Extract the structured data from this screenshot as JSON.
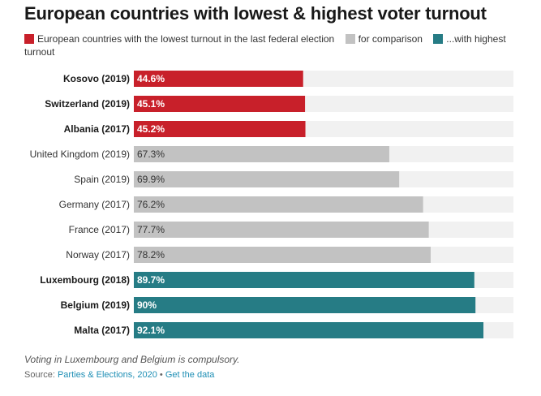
{
  "title": "European countries with lowest & highest voter turnout",
  "legend": [
    {
      "label": "European countries with the lowest turnout in the last federal election",
      "color": "#c8202a"
    },
    {
      "label": "for comparison",
      "color": "#c2c2c2"
    },
    {
      "label": "...with highest turnout",
      "color": "#267c85"
    }
  ],
  "chart_data": {
    "type": "bar",
    "orientation": "horizontal",
    "categories": [
      "Kosovo (2019)",
      "Switzerland (2019)",
      "Albania (2017)",
      "United Kingdom (2019)",
      "Spain (2019)",
      "Germany (2017)",
      "France (2017)",
      "Norway (2017)",
      "Luxembourg (2018)",
      "Belgium (2019)",
      "Malta (2017)"
    ],
    "values": [
      44.6,
      45.1,
      45.2,
      67.3,
      69.9,
      76.2,
      77.7,
      78.2,
      89.7,
      90,
      92.1
    ],
    "value_labels": [
      "44.6%",
      "45.1%",
      "45.2%",
      "67.3%",
      "69.9%",
      "76.2%",
      "77.7%",
      "78.2%",
      "89.7%",
      "90%",
      "92.1%"
    ],
    "groups": [
      "lowest",
      "lowest",
      "lowest",
      "comparison",
      "comparison",
      "comparison",
      "comparison",
      "comparison",
      "highest",
      "highest",
      "highest"
    ],
    "group_colors": {
      "lowest": "#c8202a",
      "comparison": "#c2c2c2",
      "highest": "#267c85"
    },
    "bold_categories": [
      "Kosovo (2019)",
      "Switzerland (2019)",
      "Albania (2017)",
      "Luxembourg (2018)",
      "Belgium (2019)",
      "Malta (2017)"
    ],
    "xlim": [
      0,
      100
    ],
    "background_bar_color": "#f1f1f1"
  },
  "note": "Voting in Luxembourg and Belgium is compulsory.",
  "source": {
    "prefix": "Source: ",
    "name": "Parties & Elections, 2020",
    "separator": " • ",
    "link": "Get the data"
  }
}
